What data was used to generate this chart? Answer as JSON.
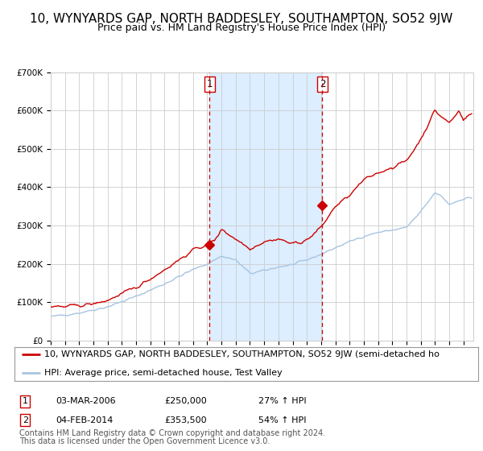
{
  "title": "10, WYNYARDS GAP, NORTH BADDESLEY, SOUTHAMPTON, SO52 9JW",
  "subtitle": "Price paid vs. HM Land Registry's House Price Index (HPI)",
  "hpi_color": "#a8c4e0",
  "price_color": "#cc0000",
  "marker_color": "#cc0000",
  "shading_color": "#dceeff",
  "vline_color": "#cc0000",
  "grid_color": "#cccccc",
  "background_color": "#ffffff",
  "plot_bg_color": "#ffffff",
  "ylim": [
    0,
    700000
  ],
  "yticks": [
    0,
    100000,
    200000,
    300000,
    400000,
    500000,
    600000,
    700000
  ],
  "ytick_labels": [
    "£0",
    "£100K",
    "£200K",
    "£300K",
    "£400K",
    "£500K",
    "£600K",
    "£700K"
  ],
  "year_start": 1995,
  "year_end": 2024,
  "sale1_year": 2006.17,
  "sale1_price": 250000,
  "sale1_label": "03-MAR-2006",
  "sale1_pct": "27%",
  "sale2_year": 2014.09,
  "sale2_price": 353500,
  "sale2_label": "04-FEB-2014",
  "sale2_pct": "54%",
  "legend_property": "10, WYNYARDS GAP, NORTH BADDESLEY, SOUTHAMPTON, SO52 9JW (semi-detached ho",
  "legend_hpi": "HPI: Average price, semi-detached house, Test Valley",
  "footer1": "Contains HM Land Registry data © Crown copyright and database right 2024.",
  "footer2": "This data is licensed under the Open Government Licence v3.0.",
  "title_fontsize": 11,
  "subtitle_fontsize": 9,
  "tick_fontsize": 7.5,
  "legend_fontsize": 8,
  "annot_fontsize": 8,
  "footer_fontsize": 7
}
